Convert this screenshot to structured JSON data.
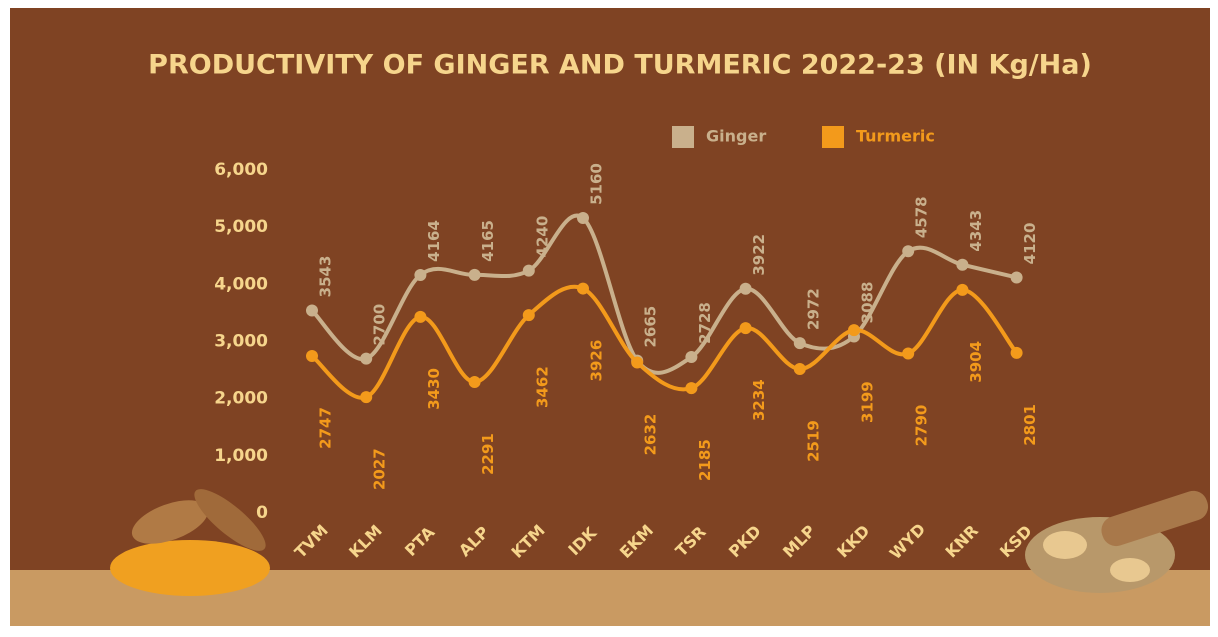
{
  "chart_data": {
    "type": "line",
    "title": "PRODUCTIVITY OF GINGER AND TURMERIC  2022-23 (IN Kg/Ha)",
    "categories": [
      "TVM",
      "KLM",
      "PTA",
      "ALP",
      "KTM",
      "IDK",
      "EKM",
      "TSR",
      "PKD",
      "MLP",
      "KKD",
      "WYD",
      "KNR",
      "KSD"
    ],
    "series": [
      {
        "name": "Ginger",
        "color": "#c9b08c",
        "values": [
          3543,
          2700,
          4164,
          4165,
          4240,
          5160,
          2665,
          2728,
          3922,
          2972,
          3088,
          4578,
          4343,
          4120
        ]
      },
      {
        "name": "Turmeric",
        "color": "#f39a1b",
        "values": [
          2747,
          2027,
          3430,
          2291,
          3462,
          3926,
          2632,
          2185,
          3234,
          2519,
          3199,
          2790,
          3904,
          2801
        ]
      }
    ],
    "ylim": [
      0,
      6000
    ],
    "yticks": [
      0,
      {
        "value": 1000,
        "label": "1,000"
      },
      {
        "value": 2000,
        "label": "2,000"
      },
      {
        "value": 3000,
        "label": "3,000"
      },
      {
        "value": 4000,
        "label": "4,000"
      },
      {
        "value": 5000,
        "label": "5,000"
      },
      {
        "value": 6000,
        "label": "6,000"
      }
    ],
    "legend": "top-right"
  }
}
